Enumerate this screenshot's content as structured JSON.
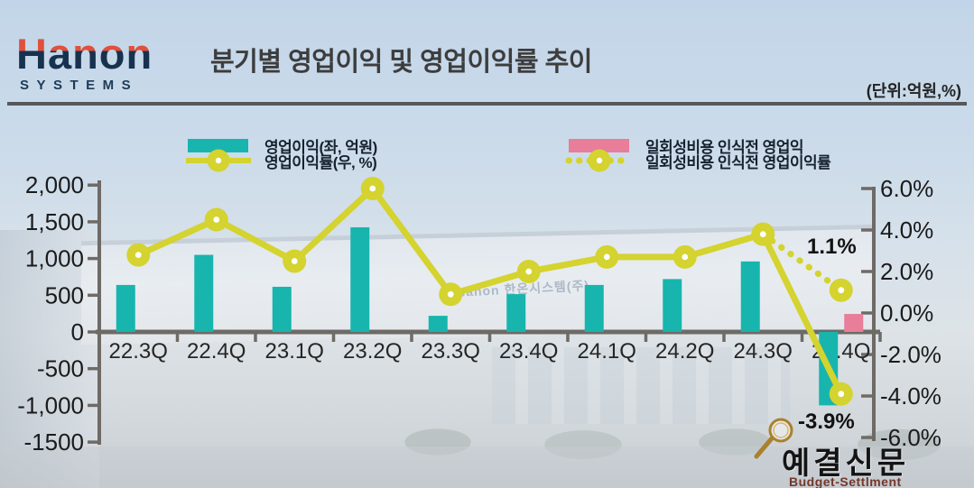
{
  "header": {
    "logo_primary": "Hanon",
    "logo_secondary": "SYSTEMS",
    "title": "분기별 영업이익 및 영업이익률 추이",
    "unit_label": "(단위:억원,%)"
  },
  "chart_data": {
    "type": "bar+line combo (dual axis)",
    "categories": [
      "22.3Q",
      "22.4Q",
      "23.1Q",
      "23.2Q",
      "23.3Q",
      "23.4Q",
      "24.1Q",
      "24.2Q",
      "24.3Q",
      "24.4Q"
    ],
    "series": [
      {
        "name": "영업이익(좌, 억원)",
        "type": "bar",
        "axis": "left",
        "color": "#17b5ae",
        "values": [
          640,
          1050,
          615,
          1425,
          220,
          515,
          640,
          720,
          960,
          -1000
        ]
      },
      {
        "name": "영업이익률(우, %)",
        "type": "line",
        "axis": "right",
        "color": "#d4d32f",
        "values": [
          2.8,
          4.5,
          2.5,
          6.0,
          0.9,
          2.0,
          2.7,
          2.7,
          3.8,
          -3.9
        ]
      },
      {
        "name": "일회성비용 인식전 영업익",
        "type": "bar",
        "axis": "left",
        "color": "#e87e99",
        "values": [
          null,
          null,
          null,
          null,
          null,
          null,
          null,
          null,
          null,
          245
        ]
      },
      {
        "name": "일회성비용 인식전 영업이익률",
        "type": "line-dotted",
        "axis": "right",
        "color": "#d4d32f",
        "values": [
          null,
          null,
          null,
          null,
          null,
          null,
          null,
          null,
          3.8,
          1.1
        ]
      }
    ],
    "left_axis": {
      "tick_labels": [
        "2,000",
        "1,500",
        "1,000",
        "500",
        "0",
        "-500",
        "-1,000",
        "-1500"
      ],
      "tick_values": [
        2000,
        1500,
        1000,
        500,
        0,
        -500,
        -1000,
        -1500
      ],
      "range": [
        -1500,
        2000
      ]
    },
    "right_axis": {
      "tick_labels": [
        "6.0%",
        "4.0%",
        "2.0%",
        "0.0%",
        "-2.0%",
        "-4.0%",
        "-6.0%"
      ],
      "tick_values": [
        6,
        4,
        2,
        0,
        -2,
        -4,
        -6
      ],
      "range": [
        -6,
        6
      ]
    },
    "legend_position": "top",
    "grid": false,
    "annotations": [
      {
        "text": "1.1%",
        "series": "일회성비용 인식전 영업이익률",
        "category": "24.4Q"
      },
      {
        "text": "-3.9%",
        "series": "영업이익률(우, %)",
        "category": "24.4Q"
      }
    ]
  },
  "annotations": {
    "pre_cost_rate": "1.1%",
    "q4_rate": "-3.9%"
  },
  "watermark": {
    "korean": "예결신문",
    "english": "Budget-Settlment",
    "building_sign": "Hanon 한온시스템(주)"
  },
  "colors": {
    "operating_profit_bar": "#17b5ae",
    "profit_rate_line": "#d4d32f",
    "pre_cost_bar": "#e87e99",
    "axis": "#6e6a66",
    "title_text": "#3d3d3d",
    "logo_red": "#e0503a",
    "logo_navy": "#17324e",
    "watermark_brown": "#74372a"
  }
}
